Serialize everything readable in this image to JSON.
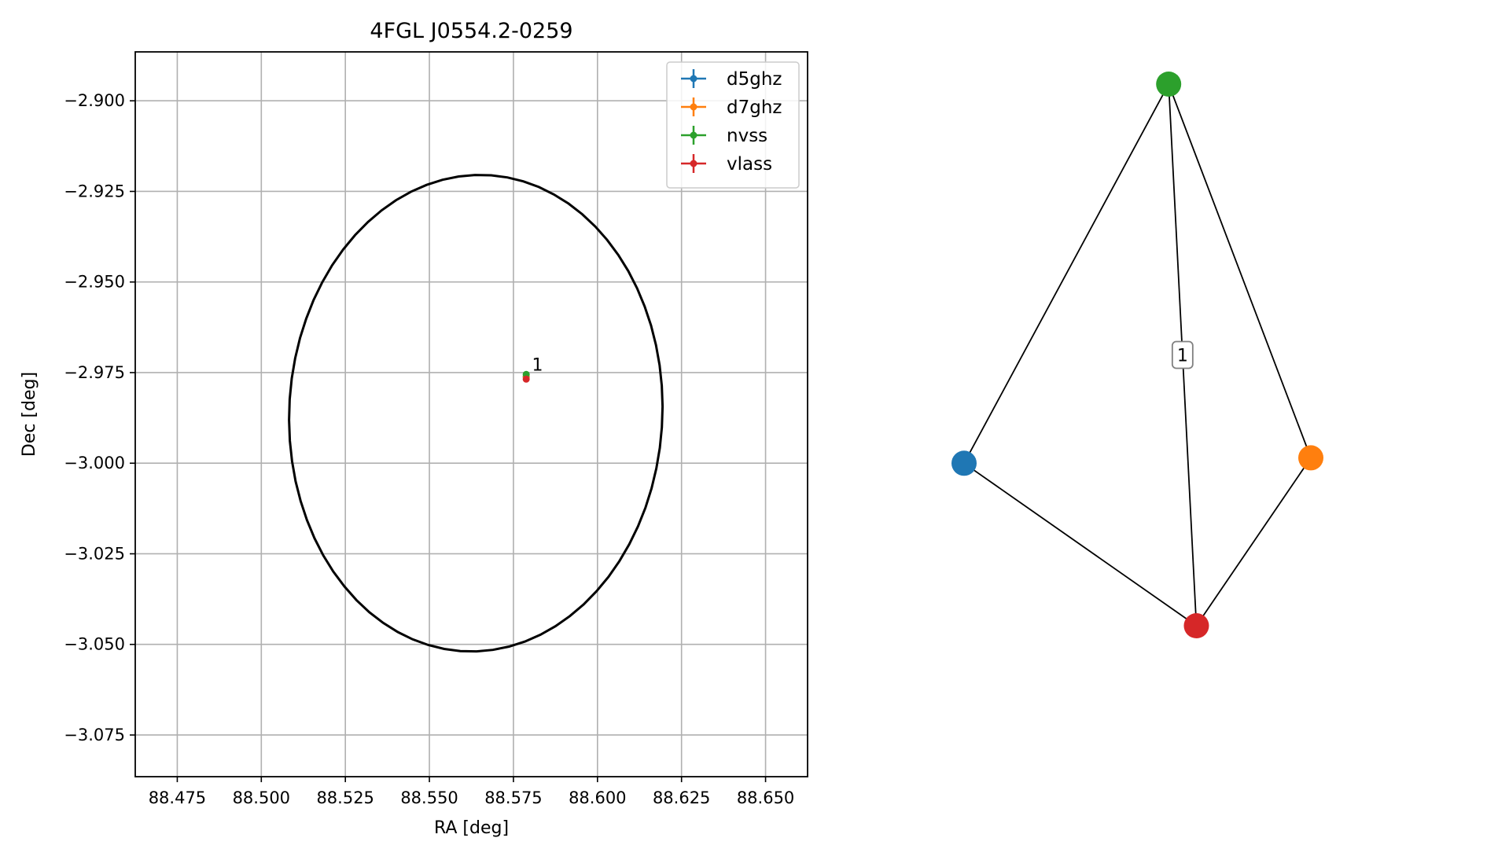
{
  "chart_data": [
    {
      "type": "scatter",
      "title": "4FGL J0554.2-0259",
      "xlabel": "RA [deg]",
      "ylabel": "Dec [deg]",
      "xlim": [
        88.4625,
        88.6625
      ],
      "ylim": [
        -3.0865,
        -2.8865
      ],
      "xticks": [
        88.475,
        88.5,
        88.525,
        88.55,
        88.575,
        88.6,
        88.625,
        88.65
      ],
      "xtick_labels": [
        "88.475",
        "88.500",
        "88.525",
        "88.550",
        "88.575",
        "88.600",
        "88.625",
        "88.650"
      ],
      "yticks": [
        -2.9,
        -2.925,
        -2.95,
        -2.975,
        -3.0,
        -3.025,
        -3.05,
        -3.075
      ],
      "ytick_labels": [
        "−2.900",
        "−2.925",
        "−2.950",
        "−2.975",
        "−3.000",
        "−3.025",
        "−3.050",
        "−3.075"
      ],
      "grid": true,
      "legend_position": "top-right",
      "series": [
        {
          "name": "d5ghz",
          "color": "#1f77b4",
          "x": [
            88.5788
          ],
          "y": [
            -2.9762
          ]
        },
        {
          "name": "d7ghz",
          "color": "#ff7f0e",
          "x": [
            88.5788
          ],
          "y": [
            -2.9762
          ]
        },
        {
          "name": "nvss",
          "color": "#2ca02c",
          "x": [
            88.5788
          ],
          "y": [
            -2.9755
          ]
        },
        {
          "name": "vlass",
          "color": "#d62728",
          "x": [
            88.5788
          ],
          "y": [
            -2.9768
          ]
        }
      ],
      "ellipse": {
        "center": [
          88.5638,
          -2.9862
        ],
        "semi_axis_ra": 0.0555,
        "semi_axis_dec": 0.0658,
        "angle_deg": -4,
        "color": "#000000"
      },
      "annotations": [
        {
          "text": "1",
          "x": 88.5805,
          "y": -2.9745
        }
      ]
    },
    {
      "type": "network",
      "nodes": [
        {
          "id": "d5ghz",
          "color": "#1f77b4",
          "x": 0.0,
          "y": 0.3
        },
        {
          "id": "d7ghz",
          "color": "#ff7f0e",
          "x": 1.0,
          "y": 0.31
        },
        {
          "id": "nvss",
          "color": "#2ca02c",
          "x": 0.59,
          "y": 1.0
        },
        {
          "id": "vlass",
          "color": "#d62728",
          "x": 0.67,
          "y": 0.0
        }
      ],
      "edges": [
        {
          "source": "nvss",
          "target": "d5ghz"
        },
        {
          "source": "nvss",
          "target": "d7ghz"
        },
        {
          "source": "nvss",
          "target": "vlass"
        },
        {
          "source": "d5ghz",
          "target": "vlass"
        },
        {
          "source": "d7ghz",
          "target": "vlass"
        }
      ],
      "edge_labels": [
        {
          "source": "nvss",
          "target": "vlass",
          "label": "1"
        }
      ]
    }
  ]
}
